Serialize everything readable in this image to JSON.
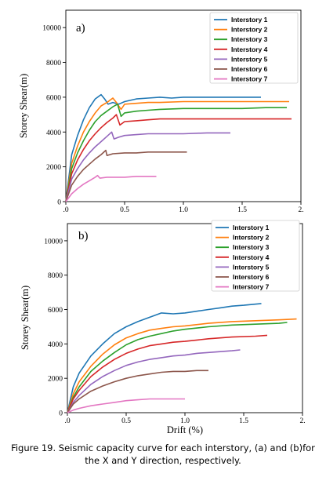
{
  "chart_data": [
    {
      "type": "line",
      "panel_label": "a)",
      "xlabel": "",
      "ylabel": "Storey Shear(m)",
      "xlim": [
        0,
        2
      ],
      "ylim": [
        0,
        11000
      ],
      "xticks": [
        0,
        0.5,
        1,
        1.5,
        2
      ],
      "xtick_labels": [
        ".0",
        "0.5",
        "1.0",
        "1.5",
        "2."
      ],
      "yticks": [
        0,
        2000,
        4000,
        6000,
        8000,
        10000
      ],
      "ytick_labels": [
        "0",
        "2000",
        "4000",
        "6000",
        "8000",
        "10000"
      ],
      "legend": "top-right",
      "series": [
        {
          "name": "Interstory 1",
          "color": "#1f77b4",
          "x": [
            0,
            0.05,
            0.1,
            0.15,
            0.2,
            0.25,
            0.3,
            0.33,
            0.36,
            0.4,
            0.45,
            0.5,
            0.6,
            0.7,
            0.8,
            0.9,
            1.0,
            1.2,
            1.4,
            1.66
          ],
          "y": [
            0,
            2700,
            3800,
            4700,
            5400,
            5900,
            6150,
            5900,
            5600,
            5700,
            5600,
            5750,
            5900,
            5950,
            6000,
            5950,
            6000,
            6000,
            6000,
            6000
          ]
        },
        {
          "name": "Interstory 2",
          "color": "#ff7f0e",
          "x": [
            0,
            0.05,
            0.1,
            0.15,
            0.2,
            0.25,
            0.3,
            0.35,
            0.4,
            0.43,
            0.47,
            0.5,
            0.6,
            0.7,
            0.8,
            1.0,
            1.2,
            1.5,
            1.7,
            1.9
          ],
          "y": [
            0,
            2200,
            3200,
            4000,
            4600,
            5100,
            5500,
            5700,
            5950,
            5700,
            5300,
            5600,
            5650,
            5700,
            5700,
            5750,
            5750,
            5750,
            5750,
            5750
          ]
        },
        {
          "name": "Interstory 3",
          "color": "#2ca02c",
          "x": [
            0,
            0.05,
            0.1,
            0.15,
            0.2,
            0.25,
            0.3,
            0.35,
            0.4,
            0.44,
            0.47,
            0.5,
            0.6,
            0.7,
            0.8,
            1.0,
            1.2,
            1.5,
            1.7,
            1.88
          ],
          "y": [
            0,
            1900,
            2800,
            3500,
            4100,
            4600,
            4950,
            5200,
            5450,
            5600,
            4900,
            5100,
            5200,
            5250,
            5300,
            5350,
            5350,
            5350,
            5400,
            5400
          ]
        },
        {
          "name": "Interstory 4",
          "color": "#d62728",
          "x": [
            0,
            0.05,
            0.1,
            0.15,
            0.2,
            0.25,
            0.3,
            0.35,
            0.4,
            0.43,
            0.46,
            0.5,
            0.6,
            0.7,
            0.8,
            1.0,
            1.2,
            1.5,
            1.7,
            1.92
          ],
          "y": [
            0,
            1600,
            2400,
            3000,
            3500,
            3900,
            4250,
            4550,
            4800,
            5000,
            4400,
            4600,
            4650,
            4700,
            4750,
            4750,
            4750,
            4750,
            4750,
            4750
          ]
        },
        {
          "name": "Interstory 5",
          "color": "#9467bd",
          "x": [
            0,
            0.05,
            0.1,
            0.15,
            0.2,
            0.25,
            0.3,
            0.35,
            0.39,
            0.41,
            0.45,
            0.5,
            0.6,
            0.7,
            0.8,
            1.0,
            1.2,
            1.4
          ],
          "y": [
            0,
            1300,
            1900,
            2400,
            2800,
            3150,
            3450,
            3750,
            4000,
            3600,
            3700,
            3800,
            3850,
            3900,
            3900,
            3900,
            3950,
            3950
          ]
        },
        {
          "name": "Interstory 6",
          "color": "#8c564b",
          "x": [
            0,
            0.05,
            0.1,
            0.15,
            0.2,
            0.25,
            0.3,
            0.34,
            0.35,
            0.4,
            0.5,
            0.6,
            0.7,
            0.8,
            0.9,
            1.03
          ],
          "y": [
            0,
            950,
            1450,
            1850,
            2150,
            2450,
            2700,
            2950,
            2650,
            2750,
            2800,
            2800,
            2850,
            2850,
            2850,
            2850
          ]
        },
        {
          "name": "Interstory 7",
          "color": "#e377c2",
          "x": [
            0,
            0.05,
            0.1,
            0.15,
            0.2,
            0.25,
            0.27,
            0.29,
            0.35,
            0.4,
            0.5,
            0.6,
            0.7,
            0.77
          ],
          "y": [
            0,
            450,
            750,
            1000,
            1200,
            1400,
            1500,
            1350,
            1400,
            1400,
            1400,
            1450,
            1450,
            1450
          ]
        }
      ]
    },
    {
      "type": "line",
      "panel_label": "b)",
      "xlabel": "Drift (%)",
      "ylabel": "Storey Shear(m)",
      "xlim": [
        0,
        2
      ],
      "ylim": [
        0,
        11000
      ],
      "xticks": [
        0,
        0.5,
        1,
        1.5,
        2
      ],
      "xtick_labels": [
        ".0",
        "0.5",
        "1.0",
        "1.5",
        "2."
      ],
      "yticks": [
        0,
        2000,
        4000,
        6000,
        8000,
        10000
      ],
      "ytick_labels": [
        "0",
        "2000",
        "4000",
        "6000",
        "8000",
        "10000"
      ],
      "legend": "top-right",
      "series": [
        {
          "name": "Interstory 1",
          "color": "#1f77b4",
          "x": [
            0,
            0.05,
            0.1,
            0.2,
            0.3,
            0.4,
            0.5,
            0.6,
            0.7,
            0.8,
            0.9,
            1.0,
            1.1,
            1.2,
            1.3,
            1.4,
            1.5,
            1.65
          ],
          "y": [
            0,
            1500,
            2300,
            3300,
            4000,
            4600,
            5000,
            5300,
            5550,
            5800,
            5750,
            5800,
            5900,
            6000,
            6100,
            6200,
            6250,
            6350
          ]
        },
        {
          "name": "Interstory 2",
          "color": "#ff7f0e",
          "x": [
            0,
            0.05,
            0.1,
            0.2,
            0.3,
            0.4,
            0.5,
            0.6,
            0.7,
            0.8,
            0.9,
            1.0,
            1.2,
            1.4,
            1.6,
            1.8,
            1.95
          ],
          "y": [
            0,
            1100,
            1800,
            2700,
            3400,
            3950,
            4350,
            4600,
            4800,
            4900,
            5000,
            5050,
            5200,
            5300,
            5350,
            5400,
            5450
          ]
        },
        {
          "name": "Interstory 3",
          "color": "#2ca02c",
          "x": [
            0,
            0.05,
            0.1,
            0.2,
            0.3,
            0.4,
            0.5,
            0.6,
            0.7,
            0.8,
            0.9,
            1.0,
            1.2,
            1.4,
            1.6,
            1.8,
            1.87
          ],
          "y": [
            0,
            900,
            1500,
            2400,
            3000,
            3500,
            3950,
            4250,
            4450,
            4600,
            4750,
            4850,
            5000,
            5100,
            5150,
            5200,
            5250
          ]
        },
        {
          "name": "Interstory 4",
          "color": "#d62728",
          "x": [
            0,
            0.05,
            0.1,
            0.2,
            0.3,
            0.4,
            0.5,
            0.6,
            0.7,
            0.8,
            0.9,
            1.0,
            1.2,
            1.4,
            1.6,
            1.7
          ],
          "y": [
            0,
            800,
            1300,
            2100,
            2650,
            3100,
            3450,
            3700,
            3900,
            4000,
            4100,
            4150,
            4300,
            4400,
            4450,
            4500
          ]
        },
        {
          "name": "Interstory 5",
          "color": "#9467bd",
          "x": [
            0,
            0.05,
            0.1,
            0.2,
            0.3,
            0.4,
            0.5,
            0.6,
            0.7,
            0.8,
            0.9,
            1.0,
            1.1,
            1.2,
            1.3,
            1.4,
            1.47
          ],
          "y": [
            0,
            600,
            1000,
            1650,
            2100,
            2450,
            2750,
            2950,
            3100,
            3200,
            3300,
            3350,
            3450,
            3500,
            3550,
            3600,
            3650
          ]
        },
        {
          "name": "Interstory 6",
          "color": "#8c564b",
          "x": [
            0,
            0.05,
            0.1,
            0.2,
            0.3,
            0.4,
            0.5,
            0.6,
            0.7,
            0.8,
            0.9,
            1.0,
            1.1,
            1.2
          ],
          "y": [
            0,
            500,
            800,
            1250,
            1550,
            1800,
            2000,
            2150,
            2250,
            2350,
            2400,
            2400,
            2450,
            2450
          ]
        },
        {
          "name": "Interstory 7",
          "color": "#e377c2",
          "x": [
            0,
            0.05,
            0.1,
            0.2,
            0.3,
            0.4,
            0.5,
            0.6,
            0.7,
            0.8,
            0.9,
            1.0
          ],
          "y": [
            0,
            150,
            250,
            400,
            500,
            600,
            700,
            750,
            800,
            800,
            800,
            800
          ]
        }
      ]
    }
  ],
  "caption": {
    "line1": "Figure 19. Seismic capacity curve for each interstory, (a) and (b)for",
    "line2": "the X and Y direction, respectively."
  }
}
